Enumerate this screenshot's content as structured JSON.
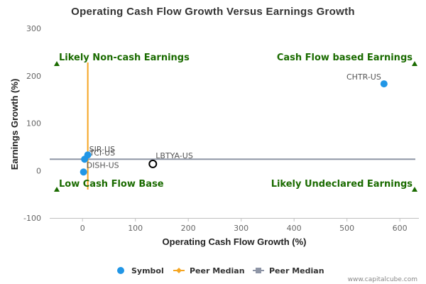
{
  "chart_data": {
    "type": "scatter",
    "title": "Operating Cash Flow Growth Versus Earnings Growth",
    "xlabel": "Operating Cash Flow Growth (%)",
    "ylabel": "Earnings Growth (%)",
    "xlim": [
      -62,
      636
    ],
    "ylim": [
      -100,
      300
    ],
    "xticks": [
      0,
      100,
      200,
      300,
      400,
      500,
      600
    ],
    "yticks": [
      -100,
      0,
      100,
      200,
      300
    ],
    "grid": false,
    "legend_position": "bottom",
    "colors": {
      "symbol": "#2196e6",
      "peer_median_x": "#f5a623",
      "peer_median_y": "#8e95a6",
      "quadrant_text": "#1a6b00",
      "triangle": "#1a6b00",
      "highlight_stroke": "#000000"
    },
    "series": [
      {
        "name": "Symbol",
        "points": [
          {
            "label": "CHTR-US",
            "x": 570,
            "y": 183
          },
          {
            "label": "SIR-US",
            "x": 10,
            "y": 33
          },
          {
            "label": "TCI-US",
            "x": 4,
            "y": 24
          },
          {
            "label": "DISH-US",
            "x": 2,
            "y": -3
          }
        ]
      }
    ],
    "highlight": {
      "label": "LBTYA-US",
      "x": 133,
      "y": 14
    },
    "peer_median_x": 10,
    "peer_median_x_range": [
      -40,
      228
    ],
    "peer_median_y": 24,
    "legend": [
      {
        "name": "Symbol",
        "marker": "circle"
      },
      {
        "name": "Peer Median",
        "marker": "diamond-line"
      },
      {
        "name": "Peer Median",
        "marker": "square-line"
      }
    ],
    "quadrants": {
      "top_left": "Likely Non-cash Earnings",
      "top_right": "Cash Flow based Earnings",
      "bottom_left": "Low Cash Flow Base",
      "bottom_right": "Likely Undeclared Earnings"
    },
    "credit": "www.capitalcube.com"
  }
}
